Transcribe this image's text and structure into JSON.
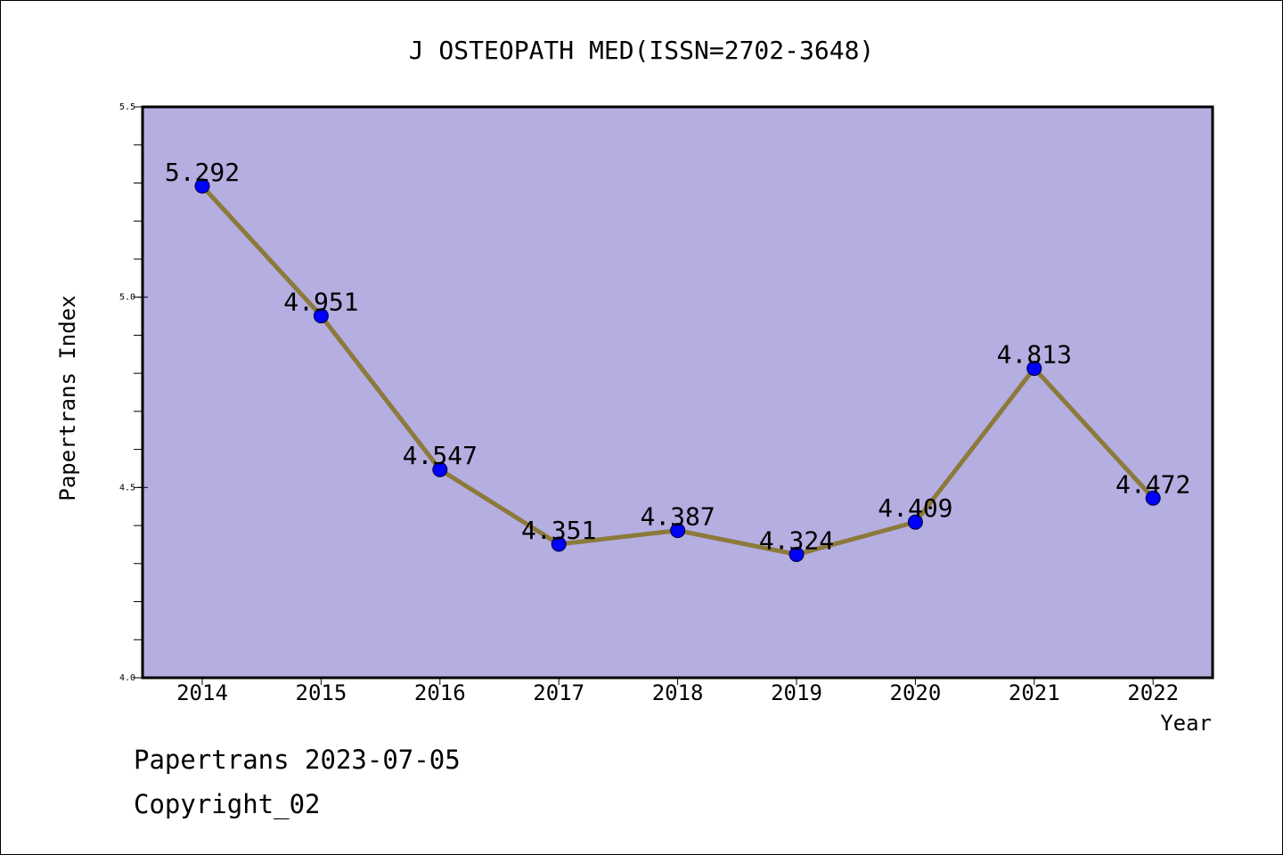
{
  "chart_data": {
    "type": "line",
    "title": "J OSTEOPATH MED(ISSN=2702-3648)",
    "xlabel": "Year",
    "ylabel": "Papertrans Index",
    "categories": [
      "2014",
      "2015",
      "2016",
      "2017",
      "2018",
      "2019",
      "2020",
      "2021",
      "2022"
    ],
    "series": [
      {
        "values": [
          5.292,
          4.951,
          4.547,
          4.351,
          4.387,
          4.324,
          4.409,
          4.813,
          4.472
        ],
        "labels": [
          "5.292",
          "4.951",
          "4.547",
          "4.351",
          "4.387",
          "4.324",
          "4.409",
          "4.813",
          "4.472"
        ]
      }
    ],
    "ylim": [
      4.0,
      5.5
    ],
    "yticks": [
      "4.0",
      "4.5",
      "5.0",
      "5.5"
    ],
    "grid": false,
    "colors": {
      "plot_background": "#b5aee1",
      "line": "#8b7a3a",
      "marker": "#0000ff"
    }
  },
  "footer": {
    "date_text": "Papertrans 2023-07-05",
    "copyright_text": "Copyright_02"
  }
}
